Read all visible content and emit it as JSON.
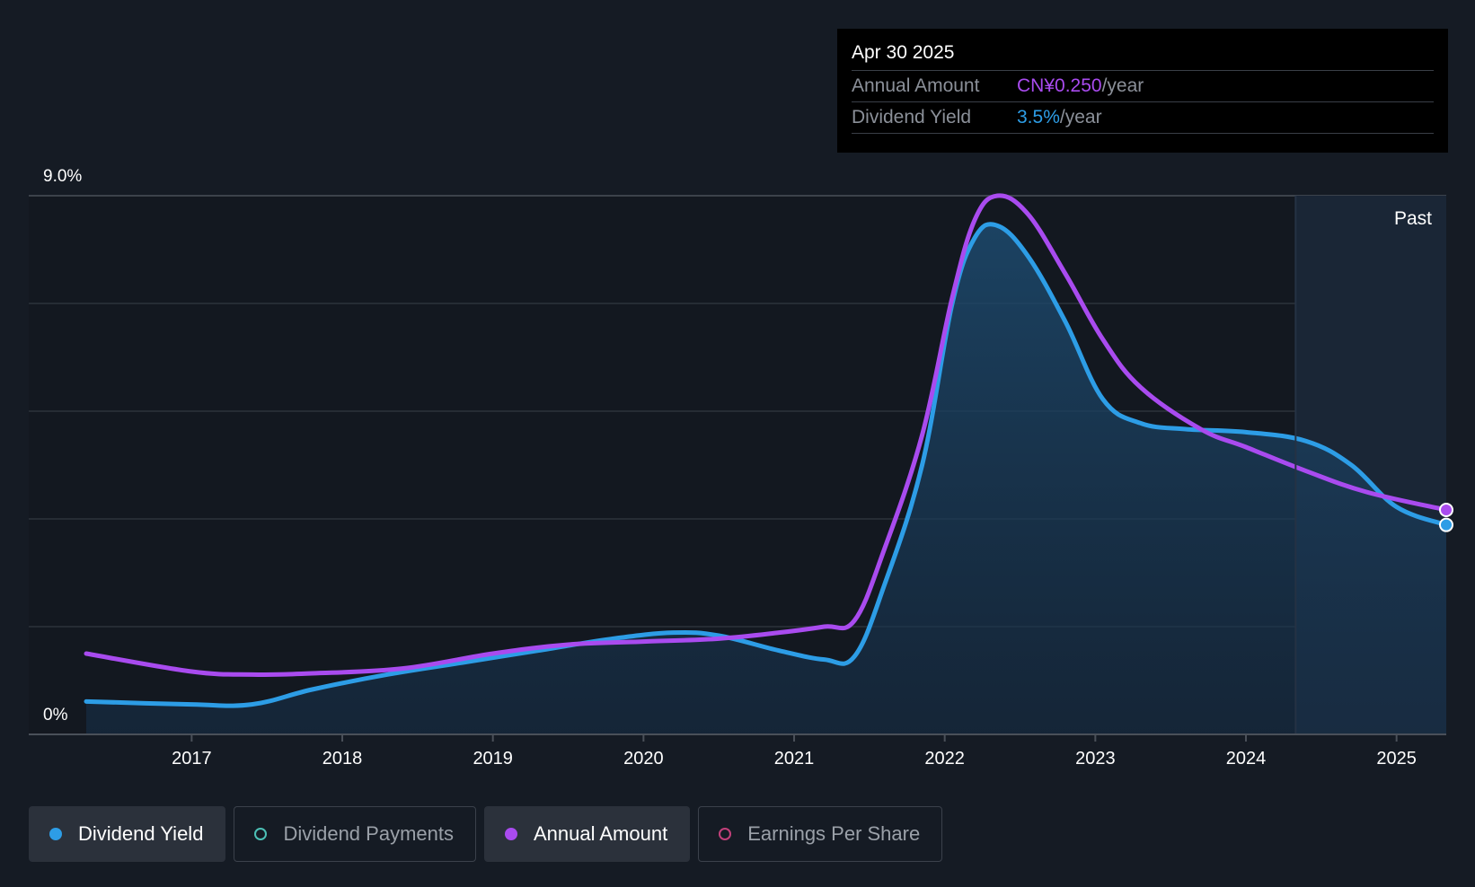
{
  "tooltip": {
    "date": "Apr 30 2025",
    "rows": [
      {
        "label": "Annual Amount",
        "value": "CN¥0.250",
        "unit": "/year",
        "color": "#a94bef"
      },
      {
        "label": "Dividend Yield",
        "value": "3.5%",
        "unit": "/year",
        "color": "#2d9de6"
      }
    ]
  },
  "legend": [
    {
      "label": "Dividend Yield",
      "color": "#2d9de6",
      "active": true,
      "hollow": false
    },
    {
      "label": "Dividend Payments",
      "color": "#4cc0b6",
      "active": false,
      "hollow": true
    },
    {
      "label": "Annual Amount",
      "color": "#a94bef",
      "active": true,
      "hollow": false
    },
    {
      "label": "Earnings Per Share",
      "color": "#c2407a",
      "active": false,
      "hollow": true
    }
  ],
  "chart_data": {
    "type": "area",
    "y_top_label": "9.0%",
    "y_bottom_label": "0%",
    "ylim": [
      0,
      9.0
    ],
    "xlim": [
      2016.3,
      2025.33
    ],
    "x_ticks": [
      2017,
      2018,
      2019,
      2020,
      2021,
      2022,
      2023,
      2024,
      2025
    ],
    "past_label": "Past",
    "past_start": 2024.33,
    "grid": true,
    "series": [
      {
        "name": "Dividend Yield",
        "color": "#2d9de6",
        "x": [
          2016.3,
          2017.0,
          2017.4,
          2017.8,
          2018.3,
          2018.8,
          2019.3,
          2019.8,
          2020.2,
          2020.5,
          2020.9,
          2021.2,
          2021.4,
          2021.6,
          2021.85,
          2022.05,
          2022.2,
          2022.35,
          2022.55,
          2022.8,
          2023.05,
          2023.3,
          2023.6,
          2024.0,
          2024.4,
          2024.7,
          2025.0,
          2025.33
        ],
        "values": [
          0.55,
          0.5,
          0.5,
          0.75,
          1.0,
          1.2,
          1.4,
          1.6,
          1.7,
          1.65,
          1.4,
          1.25,
          1.3,
          2.5,
          4.5,
          7.2,
          8.3,
          8.5,
          8.0,
          6.9,
          5.6,
          5.2,
          5.1,
          5.05,
          4.9,
          4.5,
          3.8,
          3.5
        ]
      },
      {
        "name": "Annual Amount",
        "color": "#a94bef",
        "x": [
          2016.3,
          2017.0,
          2017.4,
          2017.8,
          2018.4,
          2019.0,
          2019.5,
          2020.0,
          2020.5,
          2020.9,
          2021.2,
          2021.4,
          2021.6,
          2021.85,
          2022.05,
          2022.2,
          2022.35,
          2022.55,
          2022.8,
          2023.05,
          2023.3,
          2023.7,
          2024.0,
          2024.4,
          2024.8,
          2025.33
        ],
        "values": [
          1.35,
          1.05,
          1.0,
          1.02,
          1.1,
          1.35,
          1.5,
          1.55,
          1.6,
          1.7,
          1.8,
          1.9,
          3.1,
          5.0,
          7.3,
          8.6,
          9.0,
          8.7,
          7.7,
          6.6,
          5.8,
          5.1,
          4.8,
          4.4,
          4.05,
          3.75
        ]
      }
    ]
  }
}
